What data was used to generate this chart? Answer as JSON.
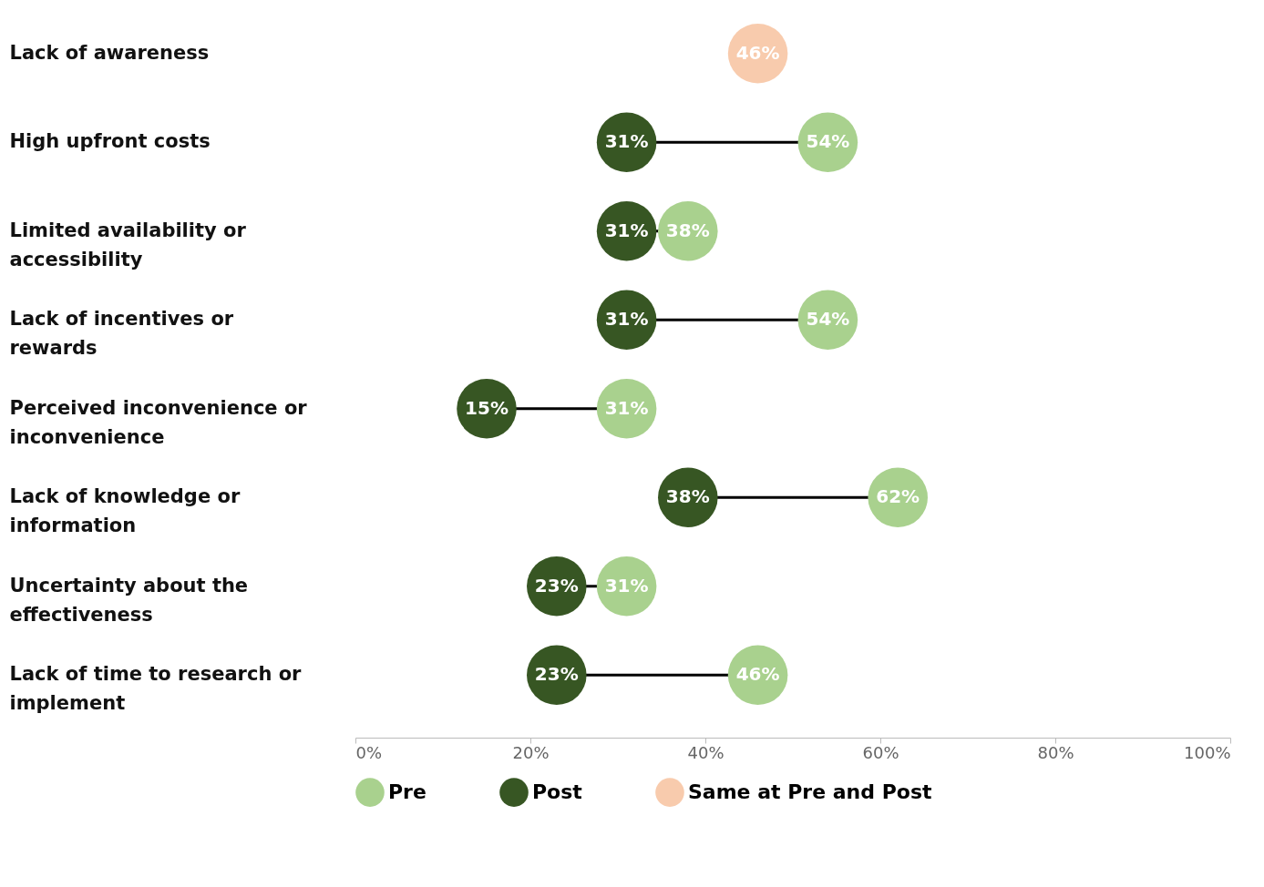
{
  "chart_data": {
    "type": "scatter",
    "categories": [
      "Lack of awareness",
      "High upfront costs",
      "Limited availability or accessibility",
      "Lack of incentives or rewards",
      "Perceived inconvenience or inconvenience",
      "Lack of knowledge or information",
      "Uncertainty about the effectiveness",
      "Lack of time to research or implement"
    ],
    "series": [
      {
        "name": "Pre",
        "color": "#a9d18e",
        "values": [
          null,
          54,
          38,
          54,
          31,
          62,
          31,
          46
        ],
        "value_labels": [
          null,
          "54%",
          "38%",
          "54%",
          "31%",
          "62%",
          "31%",
          "46%"
        ]
      },
      {
        "name": "Post",
        "color": "#375623",
        "values": [
          null,
          31,
          31,
          31,
          15,
          38,
          23,
          23
        ],
        "value_labels": [
          null,
          "31%",
          "31%",
          "31%",
          "15%",
          "38%",
          "23%",
          "23%"
        ]
      },
      {
        "name": "Same at Pre and Post",
        "color": "#f8cbad",
        "values": [
          46,
          null,
          null,
          null,
          null,
          null,
          null,
          null
        ],
        "value_labels": [
          "46%",
          null,
          null,
          null,
          null,
          null,
          null,
          null
        ]
      }
    ],
    "orientation": "horizontal",
    "xlim": [
      0,
      100
    ],
    "xticks": [
      {
        "value": 0,
        "label": "0%"
      },
      {
        "value": 20,
        "label": "20%"
      },
      {
        "value": 40,
        "label": "40%"
      },
      {
        "value": 60,
        "label": "60%"
      },
      {
        "value": 80,
        "label": "80%"
      },
      {
        "value": 100,
        "label": "100%"
      }
    ],
    "grid": false,
    "legend": "bottom",
    "marker": "circle",
    "line_style": "solid"
  }
}
